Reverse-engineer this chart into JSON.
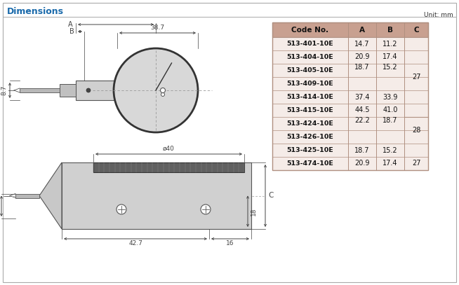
{
  "title": "Dimensions",
  "title_color": "#1a6aab",
  "unit_text": "Unit: mm",
  "background_color": "#ffffff",
  "border_color": "#aaaaaa",
  "table_header_bg": "#c8a090",
  "table_row_bg": "#f5ece8",
  "table_border_color": "#b09080",
  "table_headers": [
    "Code No.",
    "A",
    "B",
    "C"
  ],
  "dim_color": "#444444",
  "body_fill": "#d0d0d0",
  "body_edge": "#555555",
  "stem_fill": "#c0c0c0",
  "knurl_fill": "#707070",
  "dial_fill": "#d8d8d8"
}
